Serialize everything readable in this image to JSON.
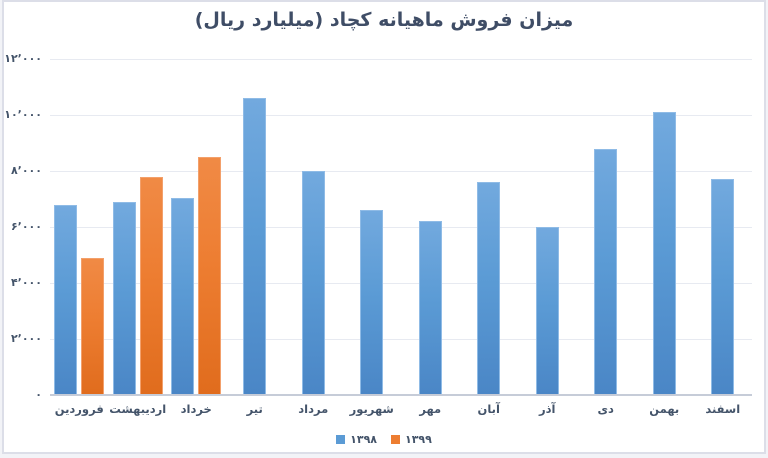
{
  "title": "میزان فروش ماهیانه کچاد (میلیارد ریال)",
  "colors": {
    "series_1398": "#5b9bd5",
    "series_1399": "#ed7d31",
    "title_text": "#3f4d66",
    "axis_text": "#44546a",
    "gridline": "#e7eaf1",
    "axis_line": "#c6ccd8"
  },
  "legend": {
    "position": "bottom",
    "items": [
      {
        "label": "۱۳۹۸",
        "color": "#5b9bd5"
      },
      {
        "label": "۱۳۹۹",
        "color": "#ed7d31"
      }
    ]
  },
  "chart_data": {
    "type": "bar",
    "title": "میزان فروش ماهیانه کچاد (میلیارد ریال)",
    "xlabel": "",
    "ylabel": "",
    "categories": [
      "فروردین",
      "اردیبهشت",
      "خرداد",
      "تیر",
      "مرداد",
      "شهریور",
      "مهر",
      "آبان",
      "آذر",
      "دی",
      "بهمن",
      "اسفند"
    ],
    "series": [
      {
        "name": "۱۳۹۸",
        "color": "#5b9bd5",
        "values": [
          6800,
          6900,
          7050,
          10600,
          8000,
          6600,
          6200,
          7600,
          6000,
          8800,
          10100,
          7700
        ]
      },
      {
        "name": "۱۳۹۹",
        "color": "#ed7d31",
        "values": [
          4900,
          7800,
          8500,
          null,
          null,
          null,
          null,
          null,
          null,
          null,
          null,
          null
        ]
      }
    ],
    "ylim": [
      0,
      12000
    ],
    "ytick_step": 2000,
    "ytick_labels": [
      "۰",
      "۲٬۰۰۰",
      "۴٬۰۰۰",
      "۶٬۰۰۰",
      "۸٬۰۰۰",
      "۱۰٬۰۰۰",
      "۱۲٬۰۰۰"
    ],
    "grid": true,
    "legend_position": "bottom"
  }
}
